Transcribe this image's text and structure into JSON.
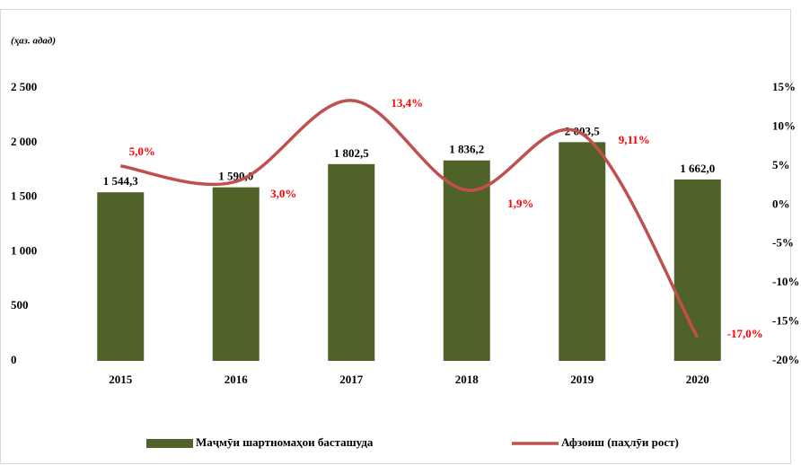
{
  "chart_data": {
    "type": "combo",
    "unit_label": "(ҳаз. адад)",
    "categories": [
      "2015",
      "2016",
      "2017",
      "2018",
      "2019",
      "2020"
    ],
    "series": [
      {
        "name": "Маҷмӯи шартномаҳои басташуда",
        "type": "bar",
        "color": "#4f6228",
        "values": [
          1544.3,
          1590.0,
          1802.5,
          1836.2,
          2003.5,
          1662.0
        ],
        "value_labels": [
          "1 544,3",
          "1 590,0",
          "1 802,5",
          "1 836,2",
          "2 003,5",
          "1 662,0"
        ]
      },
      {
        "name": "Афзоиш (паҳлӯи рост)",
        "type": "line",
        "axis": "y2",
        "color": "#c0504d",
        "values": [
          5.0,
          3.0,
          13.4,
          1.9,
          9.11,
          -17.0
        ],
        "value_labels": [
          "5,0%",
          "3,0%",
          "13,4%",
          "1,9%",
          "9,11%",
          "-17,0%"
        ],
        "label_color": "#ff0000"
      }
    ],
    "ylim": [
      0,
      2500
    ],
    "yticks": [
      0,
      500,
      {
        "value": 1000,
        "label": "1 000"
      },
      {
        "value": 1500,
        "label": "1 500"
      },
      {
        "value": 2000,
        "label": "2 000"
      },
      {
        "value": 2500,
        "label": "2 500"
      }
    ],
    "y2lim": [
      -20,
      15
    ],
    "y2ticks": [
      {
        "value": -20,
        "label": "-20%"
      },
      {
        "value": -15,
        "label": "-15%"
      },
      {
        "value": -10,
        "label": "-10%"
      },
      {
        "value": -5,
        "label": "-5%"
      },
      {
        "value": 0,
        "label": "0%"
      },
      {
        "value": 5,
        "label": "5%"
      },
      {
        "value": 10,
        "label": "10%"
      },
      {
        "value": 15,
        "label": "15%"
      }
    ],
    "grid": false,
    "legend": "bottom"
  }
}
